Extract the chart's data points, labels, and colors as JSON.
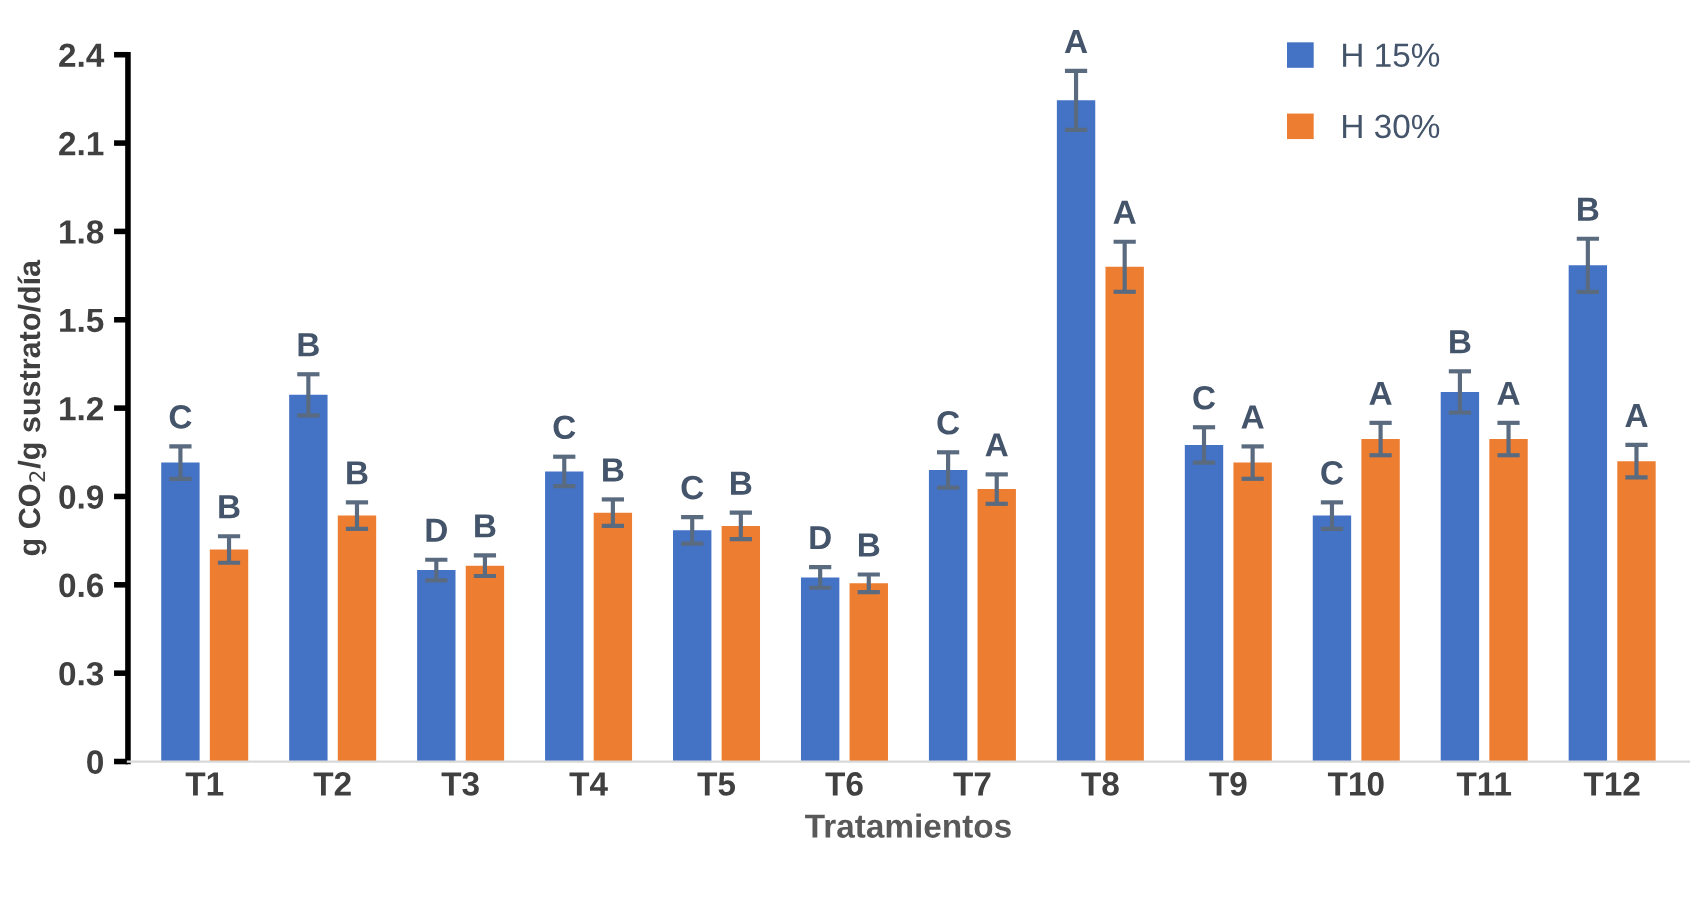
{
  "chart_data": {
    "type": "bar",
    "xlabel": "Tratamientos",
    "ylabel": "g CO$_{2}$/g sustrato/día",
    "categories": [
      "T1",
      "T2",
      "T3",
      "T4",
      "T5",
      "T6",
      "T7",
      "T8",
      "T9",
      "T10",
      "T11",
      "T12"
    ],
    "series": [
      {
        "name": "H 15%",
        "color": "#4472c4",
        "values": [
          1.015,
          1.245,
          0.65,
          0.985,
          0.785,
          0.625,
          0.99,
          2.245,
          1.075,
          0.835,
          1.255,
          1.685
        ],
        "errors": [
          0.055,
          0.07,
          0.035,
          0.05,
          0.045,
          0.035,
          0.06,
          0.1,
          0.06,
          0.045,
          0.07,
          0.09
        ],
        "value_labels": [
          "C",
          "B",
          "D",
          "C",
          "C",
          "D",
          "C",
          "A",
          "C",
          "C",
          "B",
          "B"
        ]
      },
      {
        "name": "H 30%",
        "color": "#ed7d31",
        "values": [
          0.72,
          0.835,
          0.665,
          0.845,
          0.8,
          0.605,
          0.925,
          1.68,
          1.015,
          1.095,
          1.095,
          1.02
        ],
        "errors": [
          0.045,
          0.045,
          0.035,
          0.045,
          0.045,
          0.03,
          0.05,
          0.085,
          0.055,
          0.055,
          0.055,
          0.055
        ],
        "value_labels": [
          "B",
          "B",
          "B",
          "B",
          "B",
          "B",
          "A",
          "A",
          "A",
          "A",
          "A",
          "A"
        ]
      }
    ],
    "ylim": [
      0,
      2.4
    ],
    "yticks": [
      {
        "value": 0,
        "label": "0"
      },
      {
        "value": 0.3,
        "label": "0.3"
      },
      {
        "value": 0.6,
        "label": "0.6"
      },
      {
        "value": 0.9,
        "label": "0.9"
      },
      {
        "value": 1.2,
        "label": "1.2"
      },
      {
        "value": 1.5,
        "label": "1.5"
      },
      {
        "value": 1.8,
        "label": "1.8"
      },
      {
        "value": 2.1,
        "label": "2.1"
      },
      {
        "value": 2.4,
        "label": "2.4"
      }
    ],
    "grid": false,
    "legend": "top right"
  }
}
